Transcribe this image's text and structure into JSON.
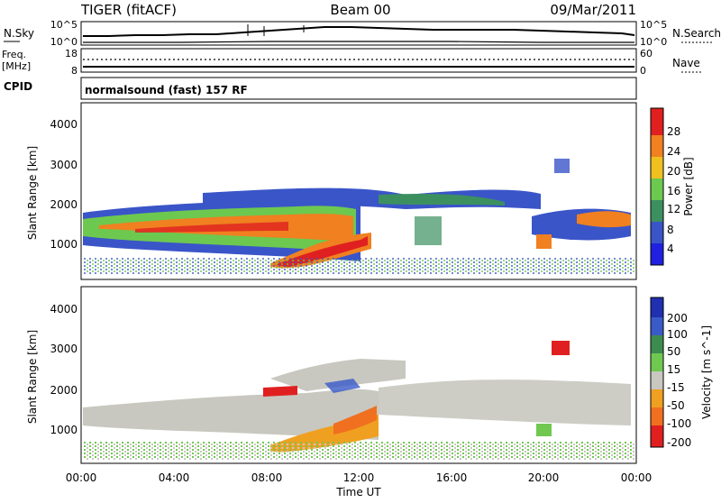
{
  "header": {
    "radar": "TIGER (fitACF)",
    "beam": "Beam 00",
    "date": "09/Mar/2011"
  },
  "nsky": {
    "left_label": "N.Sky",
    "right_label": "N.Search",
    "ticks_left": [
      "10^5",
      "10^0"
    ],
    "ticks_right": [
      "10^5",
      "10^0"
    ]
  },
  "freq": {
    "left_label_1": "Freq.",
    "left_label_2": "[MHz]",
    "ticks_left": [
      "18",
      "8"
    ],
    "right_label": "Nave",
    "ticks_right": [
      "60",
      "0"
    ]
  },
  "cpid": {
    "label": "CPID",
    "mode": "normalsound (fast) 157 RF"
  },
  "chart_data": [
    {
      "type": "heatmap",
      "title": "",
      "xlabel": "",
      "ylabel": "Slant Range [km]",
      "xlim": [
        0,
        24
      ],
      "ylim": [
        180,
        4600
      ],
      "yticks": [
        "1000",
        "2000",
        "3000",
        "4000"
      ],
      "colorbar": {
        "label": "Power [dB]",
        "ticks": [
          "4",
          "8",
          "12",
          "16",
          "20",
          "24",
          "28"
        ],
        "colors": [
          "#2020e0",
          "#3a55c8",
          "#3c9060",
          "#6dc850",
          "#f0c020",
          "#f08020",
          "#e02020"
        ]
      }
    },
    {
      "type": "heatmap",
      "title": "",
      "xlabel": "Time UT",
      "ylabel": "Slant Range [km]",
      "xlim": [
        0,
        24
      ],
      "ylim": [
        180,
        4600
      ],
      "yticks": [
        "1000",
        "2000",
        "3000",
        "4000"
      ],
      "xticks": [
        "00:00",
        "04:00",
        "08:00",
        "12:00",
        "16:00",
        "20:00",
        "00:00"
      ],
      "colorbar": {
        "label": "Velocity [m s^-1]",
        "ticks": [
          "200",
          "100",
          "50",
          "15",
          "-15",
          "-50",
          "-100",
          "-200"
        ],
        "colors": [
          "#2030b0",
          "#3a5ac8",
          "#3c8c50",
          "#70c850",
          "#c8c8c0",
          "#f0a020",
          "#f07020",
          "#e02020"
        ]
      }
    }
  ]
}
